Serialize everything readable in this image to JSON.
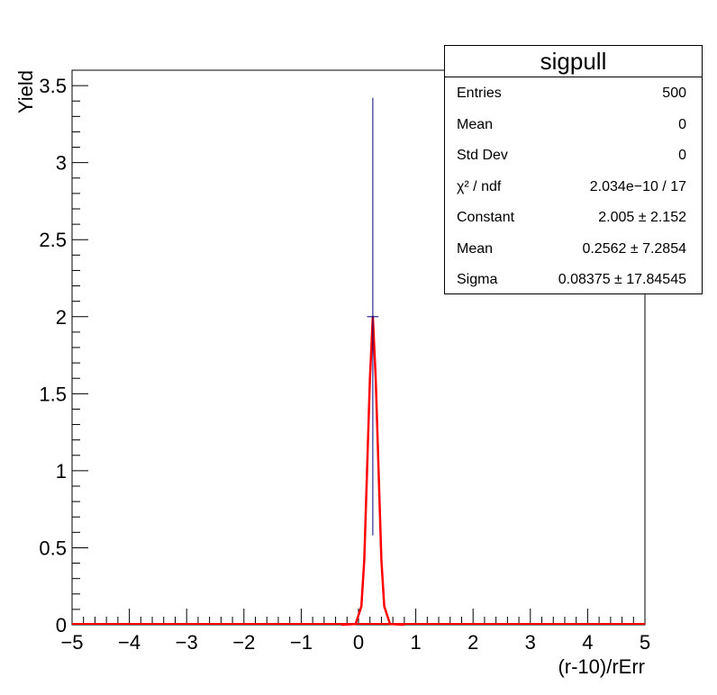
{
  "chart_data": {
    "type": "histogram",
    "xlabel": "(r-10)/rErr",
    "ylabel": "Yield",
    "xlim": [
      -5,
      5
    ],
    "ylim": [
      0,
      3.6
    ],
    "x_ticks": [
      -5,
      -4,
      -3,
      -2,
      -1,
      0,
      1,
      2,
      3,
      4,
      5
    ],
    "x_tick_labels": [
      "−5",
      "−4",
      "−3",
      "−2",
      "−1",
      "0",
      "1",
      "2",
      "3",
      "4",
      "5"
    ],
    "y_ticks": [
      0,
      0.5,
      1,
      1.5,
      2,
      2.5,
      3,
      3.5
    ],
    "y_tick_labels": [
      "0",
      "0.5",
      "1",
      "1.5",
      "2",
      "2.5",
      "3",
      "3.5"
    ],
    "histogram_point": {
      "x": 0.25,
      "y": 2,
      "x_err": 0.1,
      "y_err_low": 1.42,
      "y_err_high": 1.42,
      "color": "#000080"
    },
    "fit_curve": {
      "x": [
        -0.3,
        -0.05,
        0.05,
        0.1,
        0.15,
        0.2,
        0.25,
        0.3,
        0.35,
        0.4,
        0.45,
        0.55,
        0.8
      ],
      "y": [
        0,
        0.005,
        0.12,
        0.42,
        1.0,
        1.6,
        2.0,
        1.6,
        1.0,
        0.42,
        0.12,
        0.005,
        0
      ],
      "color": "#ff0000"
    },
    "baseline_color": "#ff0000"
  },
  "stats": {
    "title": "sigpull",
    "rows": [
      {
        "name": "Entries",
        "value": "500"
      },
      {
        "name": "Mean",
        "value": "0"
      },
      {
        "name": "Std Dev",
        "value": "0"
      },
      {
        "name": "χ² / ndf",
        "value": "2.034e−10 / 17"
      },
      {
        "name": "Constant",
        "value": "2.005 ± 2.152"
      },
      {
        "name": "Mean",
        "value": "0.2562 ± 7.2854"
      },
      {
        "name": "Sigma",
        "value": "0.08375 ± 17.84545"
      }
    ]
  }
}
